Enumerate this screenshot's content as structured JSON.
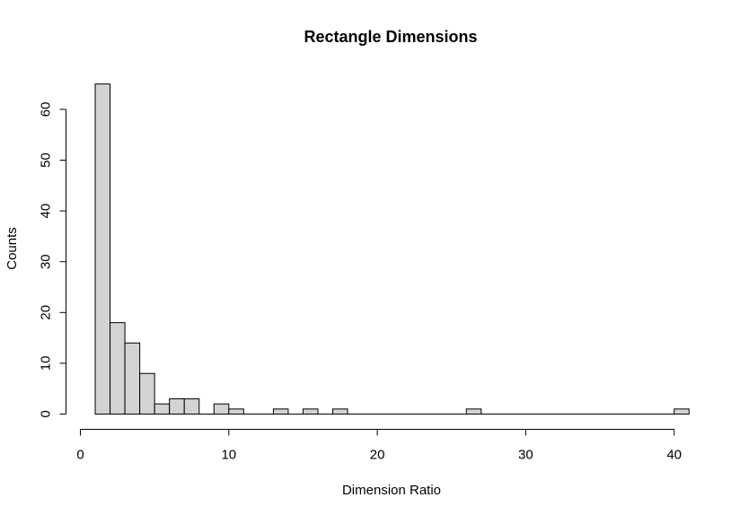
{
  "chart_data": {
    "type": "bar",
    "title": "Rectangle Dimensions",
    "xlabel": "Dimension Ratio",
    "ylabel": "Counts",
    "xlim": [
      0,
      41
    ],
    "ylim": [
      0,
      65
    ],
    "x_ticks": [
      "0",
      "10",
      "20",
      "30",
      "40"
    ],
    "y_ticks": [
      "0",
      "10",
      "20",
      "30",
      "40",
      "50",
      "60"
    ],
    "bin_width": 1,
    "bins": [
      {
        "start": 1,
        "end": 2,
        "count": 65
      },
      {
        "start": 2,
        "end": 3,
        "count": 18
      },
      {
        "start": 3,
        "end": 4,
        "count": 14
      },
      {
        "start": 4,
        "end": 5,
        "count": 8
      },
      {
        "start": 5,
        "end": 6,
        "count": 2
      },
      {
        "start": 6,
        "end": 7,
        "count": 3
      },
      {
        "start": 7,
        "end": 8,
        "count": 3
      },
      {
        "start": 8,
        "end": 9,
        "count": 0
      },
      {
        "start": 9,
        "end": 10,
        "count": 2
      },
      {
        "start": 10,
        "end": 11,
        "count": 1
      },
      {
        "start": 11,
        "end": 12,
        "count": 0
      },
      {
        "start": 12,
        "end": 13,
        "count": 0
      },
      {
        "start": 13,
        "end": 14,
        "count": 1
      },
      {
        "start": 14,
        "end": 15,
        "count": 0
      },
      {
        "start": 15,
        "end": 16,
        "count": 1
      },
      {
        "start": 16,
        "end": 17,
        "count": 0
      },
      {
        "start": 17,
        "end": 18,
        "count": 1
      },
      {
        "start": 18,
        "end": 19,
        "count": 0
      },
      {
        "start": 19,
        "end": 20,
        "count": 0
      },
      {
        "start": 20,
        "end": 21,
        "count": 0
      },
      {
        "start": 21,
        "end": 22,
        "count": 0
      },
      {
        "start": 22,
        "end": 23,
        "count": 0
      },
      {
        "start": 23,
        "end": 24,
        "count": 0
      },
      {
        "start": 24,
        "end": 25,
        "count": 0
      },
      {
        "start": 25,
        "end": 26,
        "count": 0
      },
      {
        "start": 26,
        "end": 27,
        "count": 1
      },
      {
        "start": 27,
        "end": 28,
        "count": 0
      },
      {
        "start": 28,
        "end": 29,
        "count": 0
      },
      {
        "start": 29,
        "end": 30,
        "count": 0
      },
      {
        "start": 30,
        "end": 31,
        "count": 0
      },
      {
        "start": 31,
        "end": 32,
        "count": 0
      },
      {
        "start": 32,
        "end": 33,
        "count": 0
      },
      {
        "start": 33,
        "end": 34,
        "count": 0
      },
      {
        "start": 34,
        "end": 35,
        "count": 0
      },
      {
        "start": 35,
        "end": 36,
        "count": 0
      },
      {
        "start": 36,
        "end": 37,
        "count": 0
      },
      {
        "start": 37,
        "end": 38,
        "count": 0
      },
      {
        "start": 38,
        "end": 39,
        "count": 0
      },
      {
        "start": 39,
        "end": 40,
        "count": 0
      },
      {
        "start": 40,
        "end": 41,
        "count": 1
      }
    ],
    "bar_color": "#d3d3d3",
    "border_color": "#000000",
    "grid": false,
    "legend": "none"
  }
}
